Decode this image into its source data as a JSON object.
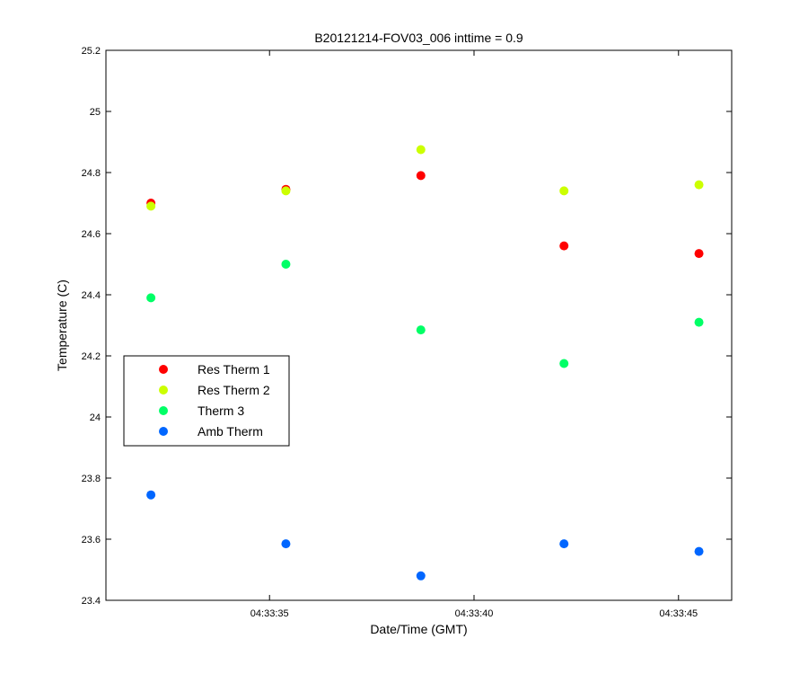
{
  "chart_data": {
    "type": "scatter",
    "title": "B20121214-FOV03_006 inttime = 0.9",
    "xlabel": "Date/Time (GMT)",
    "ylabel": "Temperature (C)",
    "x_unit": "time (GMT), seconds after 04:33:00",
    "xlim": [
      31.0,
      46.3
    ],
    "ylim": [
      23.4,
      25.2
    ],
    "x_ticks": [
      {
        "value": 35,
        "label": "04:33:35"
      },
      {
        "value": 40,
        "label": "04:33:40"
      },
      {
        "value": 45,
        "label": "04:33:45"
      }
    ],
    "y_ticks": [
      {
        "value": 23.4,
        "label": "23.4"
      },
      {
        "value": 23.6,
        "label": "23.6"
      },
      {
        "value": 23.8,
        "label": "23.8"
      },
      {
        "value": 24.0,
        "label": "24"
      },
      {
        "value": 24.2,
        "label": "24.2"
      },
      {
        "value": 24.4,
        "label": "24.4"
      },
      {
        "value": 24.6,
        "label": "24.6"
      },
      {
        "value": 24.8,
        "label": "24.8"
      },
      {
        "value": 25.0,
        "label": "25"
      },
      {
        "value": 25.2,
        "label": "25.2"
      }
    ],
    "x": [
      32.1,
      35.4,
      38.7,
      42.2,
      45.5
    ],
    "series": [
      {
        "name": "Res Therm 1",
        "color": "#ff0000",
        "values": [
          24.7,
          24.745,
          24.79,
          24.56,
          24.535
        ]
      },
      {
        "name": "Res Therm 2",
        "color": "#ccff00",
        "values": [
          24.69,
          24.74,
          24.875,
          24.74,
          24.76
        ]
      },
      {
        "name": "Therm 3",
        "color": "#00ff66",
        "values": [
          24.39,
          24.5,
          24.285,
          24.175,
          24.31
        ]
      },
      {
        "name": "Amb Therm",
        "color": "#0066ff",
        "values": [
          23.745,
          23.585,
          23.48,
          23.585,
          23.56
        ]
      }
    ],
    "grid": false,
    "legend_position": "center-left"
  }
}
